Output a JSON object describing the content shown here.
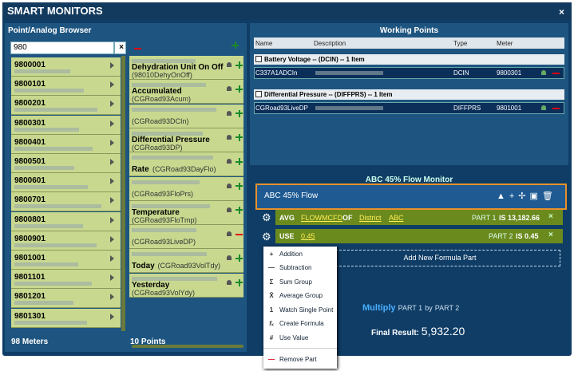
{
  "window": {
    "title": "SMART MONITORS"
  },
  "browser": {
    "title": "Point/Analog Browser",
    "search": "980",
    "meters": [
      "9800001",
      "9800101",
      "9800201",
      "9800301",
      "9800401",
      "9800501",
      "9800601",
      "9800701",
      "9800801",
      "9800901",
      "9801001",
      "9801101",
      "9801201",
      "9801301"
    ],
    "points": [
      {
        "name": "Dehydration Unit On Off",
        "code": "(98010DehyOnOff)",
        "used": false
      },
      {
        "name": "Accumulated",
        "code": "(CGRoad93Acum)",
        "used": false
      },
      {
        "name": null,
        "code": "(CGRoad93DCIn)",
        "used": false
      },
      {
        "name": "Differential Pressure",
        "code": "(CGRoad93DP)",
        "used": false
      },
      {
        "name": "Rate",
        "code": "(CGRoad93DayFlo)",
        "used": false,
        "inline": true
      },
      {
        "name": null,
        "code": "(CGRoad93FloPrs)",
        "used": false
      },
      {
        "name": "Temperature",
        "code": "(CGRoad93FloTmp)",
        "used": false
      },
      {
        "name": null,
        "code": "(CGRoad93LiveDP)",
        "used": true
      },
      {
        "name": "Today",
        "code": "(CGRoad93VolTdy)",
        "used": false,
        "inline": true
      },
      {
        "name": "Yesterday",
        "code": "(CGRoad93VolYdy)",
        "used": false
      }
    ],
    "meter_count": "98 Meters",
    "point_count": "10 Points"
  },
  "working": {
    "title": "Working Points",
    "columns": [
      "Name",
      "Description",
      "Type",
      "Meter"
    ],
    "groups": [
      {
        "label": "Battery Voltage -- (DCIN) -- 1 Item",
        "rows": [
          [
            "C337A1ADCIn",
            "DCIN",
            "9800301"
          ]
        ]
      },
      {
        "label": "Differential Pressure -- (DIFFPRS) -- 1 Item",
        "rows": [
          [
            "CGRoad93LiveDP",
            "DIFFPRS",
            "9801001"
          ]
        ]
      }
    ]
  },
  "monitor": {
    "title": "ABC 45% Flow Monitor",
    "name": "ABC 45% Flow",
    "part1": {
      "op": "AVG",
      "field": "FLOWMCFD",
      "of": "OF",
      "scope": "District",
      "target": "ABC",
      "part": "PART 1",
      "result": "IS 13,182.66"
    },
    "part2": {
      "op": "USE",
      "value": "0.45",
      "part": "PART 2",
      "result": "IS 0.45"
    },
    "add": "Add New Formula Part",
    "menu": [
      "Addition",
      "Subtraction",
      "Sum Group",
      "Average Group",
      "Watch Single Point",
      "Create Formula",
      "Use Value",
      "Remove Part"
    ],
    "combine": {
      "op": "Multiply",
      "a": "PART 1",
      "by": "by",
      "b": "PART 2"
    },
    "final_label": "Final Result:",
    "final_value": "5,932.20"
  }
}
